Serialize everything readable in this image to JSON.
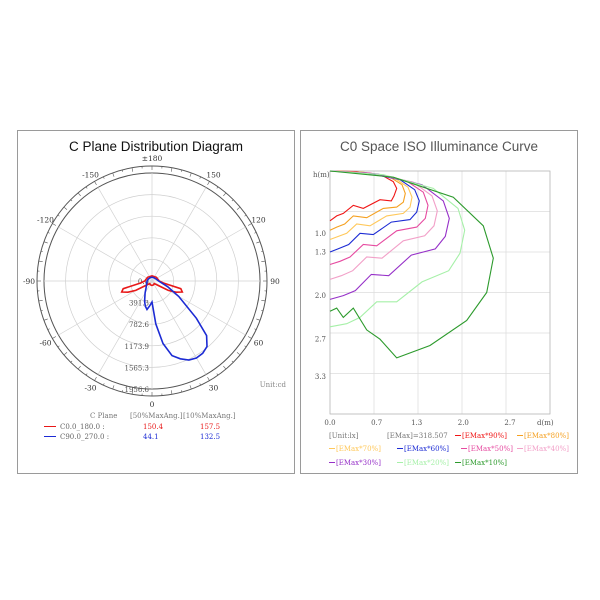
{
  "chart_data": [
    {
      "type": "polar",
      "title": "C Plane Distribution Diagram",
      "angle_labels": [
        {
          "deg": 180,
          "label": "±180"
        },
        {
          "deg": 150,
          "label": "150"
        },
        {
          "deg": 120,
          "label": "120"
        },
        {
          "deg": 90,
          "label": "90"
        },
        {
          "deg": 60,
          "label": "60"
        },
        {
          "deg": 30,
          "label": "30"
        },
        {
          "deg": 0,
          "label": "0"
        },
        {
          "deg": -30,
          "label": "-30"
        },
        {
          "deg": -60,
          "label": "-60"
        },
        {
          "deg": -90,
          "label": "-90"
        },
        {
          "deg": -120,
          "label": "-120"
        },
        {
          "deg": -150,
          "label": "-150"
        }
      ],
      "radial_labels": [
        "0.0",
        "391.3",
        "782.6",
        "1173.9",
        "1565.3",
        "1956.6"
      ],
      "unit_label": "Unit:cd",
      "rmax": 1956.6,
      "table_header": {
        "plane": "C Plane",
        "half": "[50%MaxAng.]",
        "tenth": "[10%MaxAng.]"
      },
      "series": [
        {
          "name": "C0.0_180.0 :",
          "half_angle": "150.4",
          "tenth_angle": "157.5",
          "color": "#e81818",
          "points": [
            [
              0,
              80
            ],
            [
              10,
              78
            ],
            [
              20,
              75
            ],
            [
              30,
              70
            ],
            [
              40,
              62
            ],
            [
              50,
              100
            ],
            [
              60,
              340
            ],
            [
              65,
              480
            ],
            [
              70,
              585
            ],
            [
              75,
              540
            ],
            [
              80,
              210
            ],
            [
              90,
              130
            ],
            [
              100,
              118
            ],
            [
              130,
              105
            ],
            [
              180,
              95
            ],
            [
              -130,
              105
            ],
            [
              -100,
              118
            ],
            [
              -90,
              130
            ],
            [
              -80,
              210
            ],
            [
              -75,
              540
            ],
            [
              -70,
              585
            ],
            [
              -65,
              480
            ],
            [
              -60,
              340
            ],
            [
              -50,
              100
            ],
            [
              -40,
              62
            ],
            [
              -30,
              70
            ],
            [
              -20,
              75
            ],
            [
              -10,
              78
            ],
            [
              0,
              80
            ]
          ]
        },
        {
          "name": "C90.0_270.0 :",
          "half_angle": "44.1",
          "tenth_angle": "132.5",
          "color": "#1c2bd4",
          "points": [
            [
              0,
              380
            ],
            [
              -5,
              450
            ],
            [
              -10,
              525
            ],
            [
              -15,
              470
            ],
            [
              -20,
              390
            ],
            [
              -30,
              250
            ],
            [
              -40,
              170
            ],
            [
              -60,
              110
            ],
            [
              -90,
              90
            ],
            [
              -120,
              75
            ],
            [
              -150,
              70
            ],
            [
              180,
              68
            ],
            [
              150,
              70
            ],
            [
              120,
              78
            ],
            [
              90,
              120
            ],
            [
              70,
              300
            ],
            [
              60,
              560
            ],
            [
              50,
              1050
            ],
            [
              45,
              1400
            ],
            [
              40,
              1550
            ],
            [
              35,
              1600
            ],
            [
              30,
              1610
            ],
            [
              25,
              1580
            ],
            [
              20,
              1500
            ],
            [
              15,
              1400
            ],
            [
              10,
              1150
            ],
            [
              5,
              780
            ],
            [
              0,
              380
            ]
          ]
        }
      ]
    },
    {
      "type": "line",
      "title": "C0 Space ISO Illuminance Curve",
      "ylabel": "h(m)",
      "xlabel": "d(m)",
      "x_ticks": [
        "0.0",
        "0.7",
        "1.3",
        "2.0",
        "2.7"
      ],
      "y_ticks": [
        "1.0",
        "1.3",
        "2.0",
        "2.7",
        "3.3"
      ],
      "xlim": [
        0,
        3.3
      ],
      "ylim": [
        0,
        3.9
      ],
      "legend_info": [
        "[Unit:lx]",
        "[EMax]=318.507"
      ],
      "series": [
        {
          "name": "[EMax*90%]",
          "color": "#f01515",
          "points": [
            [
              0,
              0
            ],
            [
              0.4,
              0.01
            ],
            [
              0.8,
              0.08
            ],
            [
              0.95,
              0.17
            ],
            [
              1.0,
              0.28
            ],
            [
              0.96,
              0.4
            ],
            [
              0.92,
              0.48
            ],
            [
              0.75,
              0.46
            ],
            [
              0.5,
              0.6
            ],
            [
              0.35,
              0.55
            ],
            [
              0.2,
              0.68
            ],
            [
              0.1,
              0.72
            ],
            [
              0,
              0.8
            ]
          ]
        },
        {
          "name": "[EMax*80%]",
          "color": "#f5a020",
          "points": [
            [
              0,
              0
            ],
            [
              0.45,
              0.02
            ],
            [
              0.9,
              0.1
            ],
            [
              1.08,
              0.22
            ],
            [
              1.13,
              0.36
            ],
            [
              1.1,
              0.5
            ],
            [
              1.0,
              0.58
            ],
            [
              0.8,
              0.6
            ],
            [
              0.55,
              0.75
            ],
            [
              0.35,
              0.72
            ],
            [
              0.22,
              0.85
            ],
            [
              0.1,
              0.9
            ],
            [
              0,
              0.95
            ]
          ]
        },
        {
          "name": "[EMax*70%]",
          "color": "#ffc85a",
          "points": [
            [
              0,
              0
            ],
            [
              0.5,
              0.02
            ],
            [
              0.98,
              0.12
            ],
            [
              1.17,
              0.26
            ],
            [
              1.23,
              0.42
            ],
            [
              1.2,
              0.58
            ],
            [
              1.1,
              0.68
            ],
            [
              0.85,
              0.72
            ],
            [
              0.6,
              0.88
            ],
            [
              0.4,
              0.85
            ],
            [
              0.25,
              1.0
            ],
            [
              0.1,
              1.06
            ],
            [
              0,
              1.1
            ]
          ]
        },
        {
          "name": "[EMax*60%]",
          "color": "#1c2bd4",
          "points": [
            [
              0,
              0
            ],
            [
              0.55,
              0.03
            ],
            [
              1.05,
              0.14
            ],
            [
              1.27,
              0.3
            ],
            [
              1.34,
              0.48
            ],
            [
              1.3,
              0.66
            ],
            [
              1.2,
              0.78
            ],
            [
              0.92,
              0.82
            ],
            [
              0.65,
              1.02
            ],
            [
              0.45,
              1.0
            ],
            [
              0.28,
              1.18
            ],
            [
              0.12,
              1.25
            ],
            [
              0,
              1.3
            ]
          ]
        },
        {
          "name": "[EMax*50%]",
          "color": "#e64aa0",
          "points": [
            [
              0,
              0
            ],
            [
              0.6,
              0.03
            ],
            [
              1.15,
              0.16
            ],
            [
              1.4,
              0.34
            ],
            [
              1.47,
              0.55
            ],
            [
              1.43,
              0.76
            ],
            [
              1.3,
              0.9
            ],
            [
              1.0,
              0.96
            ],
            [
              0.7,
              1.2
            ],
            [
              0.5,
              1.18
            ],
            [
              0.3,
              1.38
            ],
            [
              0.15,
              1.45
            ],
            [
              0,
              1.5
            ]
          ]
        },
        {
          "name": "[EMax*40%]",
          "color": "#f2a0c8",
          "points": [
            [
              0,
              0
            ],
            [
              0.65,
              0.04
            ],
            [
              1.25,
              0.18
            ],
            [
              1.53,
              0.4
            ],
            [
              1.61,
              0.64
            ],
            [
              1.56,
              0.88
            ],
            [
              1.42,
              1.04
            ],
            [
              1.1,
              1.12
            ],
            [
              0.78,
              1.4
            ],
            [
              0.55,
              1.38
            ],
            [
              0.34,
              1.6
            ],
            [
              0.17,
              1.68
            ],
            [
              0,
              1.74
            ]
          ]
        },
        {
          "name": "[EMax*30%]",
          "color": "#9630c8",
          "points": [
            [
              0,
              0
            ],
            [
              0.72,
              0.05
            ],
            [
              1.38,
              0.22
            ],
            [
              1.7,
              0.48
            ],
            [
              1.79,
              0.76
            ],
            [
              1.73,
              1.05
            ],
            [
              1.58,
              1.25
            ],
            [
              1.22,
              1.35
            ],
            [
              0.88,
              1.68
            ],
            [
              0.62,
              1.66
            ],
            [
              0.38,
              1.92
            ],
            [
              0.2,
              2.0
            ],
            [
              0,
              2.06
            ]
          ]
        },
        {
          "name": "[EMax*20%]",
          "color": "#a6f0a8",
          "points": [
            [
              0,
              0
            ],
            [
              0.8,
              0.06
            ],
            [
              1.55,
              0.28
            ],
            [
              1.92,
              0.6
            ],
            [
              2.02,
              0.95
            ],
            [
              1.95,
              1.32
            ],
            [
              1.78,
              1.6
            ],
            [
              1.38,
              1.78
            ],
            [
              1.0,
              2.1
            ],
            [
              0.7,
              2.1
            ],
            [
              0.45,
              2.35
            ],
            [
              0.25,
              2.45
            ],
            [
              0,
              2.5
            ]
          ]
        },
        {
          "name": "[EMax*10%]",
          "color": "#2c9a2c",
          "points": [
            [
              0,
              0
            ],
            [
              0.95,
              0.1
            ],
            [
              1.85,
              0.42
            ],
            [
              2.3,
              0.88
            ],
            [
              2.45,
              1.4
            ],
            [
              2.35,
              1.95
            ],
            [
              2.05,
              2.4
            ],
            [
              1.5,
              2.8
            ],
            [
              1.0,
              3.0
            ],
            [
              0.75,
              2.7
            ],
            [
              0.55,
              2.55
            ],
            [
              0.35,
              2.2
            ],
            [
              0.2,
              2.35
            ],
            [
              0.1,
              2.2
            ],
            [
              0,
              2.25
            ]
          ]
        }
      ]
    }
  ]
}
